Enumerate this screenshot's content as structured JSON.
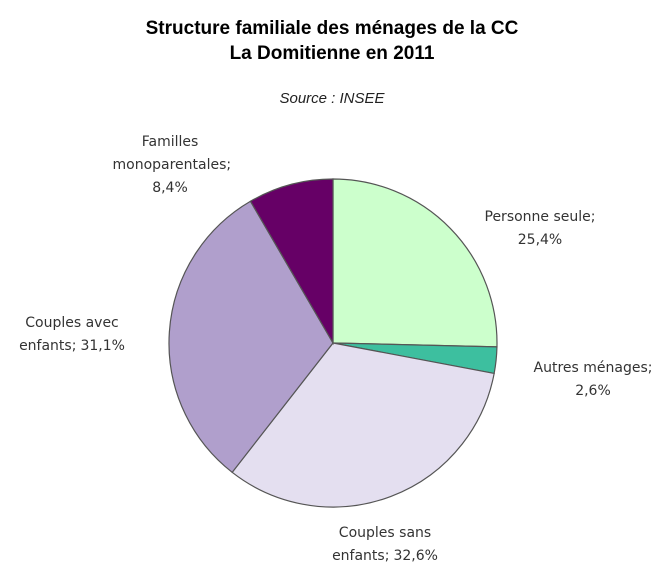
{
  "chart_data": {
    "type": "pie",
    "title": "Structure familiale des ménages de la CC La Domitienne en 2011",
    "subtitle": "Source : INSEE",
    "categories": [
      "Personne seule;",
      "Autres ménages;",
      "Couples sans enfants;",
      "Couples avec enfants;",
      "Familles monoparentales;"
    ],
    "values": [
      25.4,
      2.6,
      32.6,
      31.1,
      8.4
    ],
    "value_labels": [
      "25,4%",
      "2,6%",
      "32,6%",
      "31,1%",
      "8,4%"
    ],
    "colors": [
      "#ccffcc",
      "#3dbf9f",
      "#e4dff0",
      "#b09fcc",
      "#660066"
    ]
  }
}
